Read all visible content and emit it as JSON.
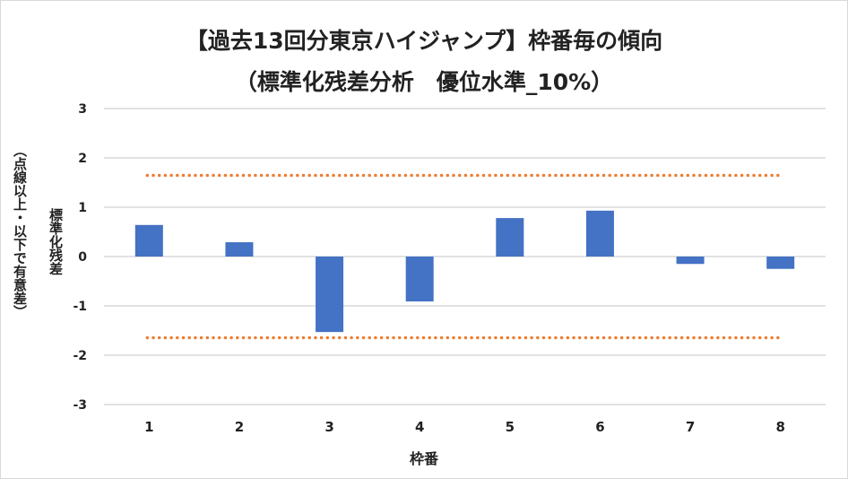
{
  "chart_data": {
    "type": "bar",
    "title": "【過去13回分東京ハイジャンプ】枠番毎の傾向",
    "subtitle": "（標準化残差分析　優位水準_10%）",
    "xlabel": "枠番",
    "ylabel": "標準化残差",
    "ylabel_note": "（点線以上・以下で有意差）",
    "categories": [
      "1",
      "2",
      "3",
      "4",
      "5",
      "6",
      "7",
      "8"
    ],
    "values": [
      0.64,
      0.29,
      -1.53,
      -0.91,
      0.78,
      0.93,
      -0.15,
      -0.25
    ],
    "ylim": [
      -3,
      3
    ],
    "yticks": [
      "-3",
      "-2",
      "-1",
      "0",
      "1",
      "2",
      "3"
    ],
    "thresholds": [
      1.645,
      -1.645
    ],
    "grid": true,
    "legend": "none",
    "bar_color": "#4472c4",
    "threshold_color": "#ed7d31"
  }
}
